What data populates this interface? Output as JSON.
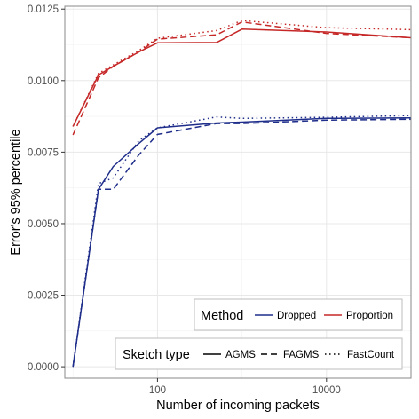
{
  "chart_data": {
    "type": "line",
    "title": "",
    "xlabel": "Number of incoming packets",
    "ylabel": "Error's 95% percentile",
    "x_scale": "log10",
    "xlim": [
      8,
      100000
    ],
    "ylim": [
      -0.0004,
      0.0126
    ],
    "x_ticks": [
      100,
      10000
    ],
    "x_tick_labels": [
      "100",
      "10000"
    ],
    "y_ticks": [
      0,
      0.0025,
      0.005,
      0.0075,
      0.01,
      0.0125
    ],
    "y_tick_labels": [
      "0.0000",
      "0.0025",
      "0.0050",
      "0.0075",
      "0.0100",
      "0.0125"
    ],
    "grid": true,
    "x": [
      10,
      20,
      30,
      60,
      100,
      500,
      1000,
      10000,
      100000
    ],
    "series": [
      {
        "method": "Dropped",
        "sketch": "AGMS",
        "values": [
          0.0,
          0.0062,
          0.007,
          0.0078,
          0.00835,
          0.00852,
          0.00855,
          0.00868,
          0.0087
        ]
      },
      {
        "method": "Dropped",
        "sketch": "FAGMS",
        "values": [
          0.0,
          0.0062,
          0.0062,
          0.0074,
          0.00812,
          0.0085,
          0.0085,
          0.00862,
          0.00865
        ]
      },
      {
        "method": "Dropped",
        "sketch": "FastCount",
        "values": [
          0.0,
          0.0064,
          0.0066,
          0.0079,
          0.00835,
          0.00873,
          0.00868,
          0.00872,
          0.00878
        ]
      },
      {
        "method": "Proportion",
        "sketch": "AGMS",
        "values": [
          0.0084,
          0.0102,
          0.0105,
          0.011,
          0.01132,
          0.01133,
          0.0118,
          0.0117,
          0.0115
        ]
      },
      {
        "method": "Proportion",
        "sketch": "FAGMS",
        "values": [
          0.0081,
          0.0101,
          0.0105,
          0.011,
          0.01145,
          0.0116,
          0.01205,
          0.01165,
          0.0115
        ]
      },
      {
        "method": "Proportion",
        "sketch": "FastCount",
        "values": [
          0.0084,
          0.01025,
          0.01055,
          0.01105,
          0.01148,
          0.01175,
          0.0121,
          0.01185,
          0.01178
        ]
      }
    ],
    "colors": {
      "Dropped": "#1f2e8a",
      "Proportion": "#c62828"
    },
    "dash": {
      "AGMS": "",
      "FAGMS": "7,4",
      "FastCount": "1.5,3.5"
    },
    "legend": {
      "position": "bottom-right",
      "method_title": "Method",
      "method_items": [
        "Dropped",
        "Proportion"
      ],
      "sketch_title": "Sketch type",
      "sketch_items": [
        "AGMS",
        "FAGMS",
        "FastCount"
      ]
    }
  }
}
